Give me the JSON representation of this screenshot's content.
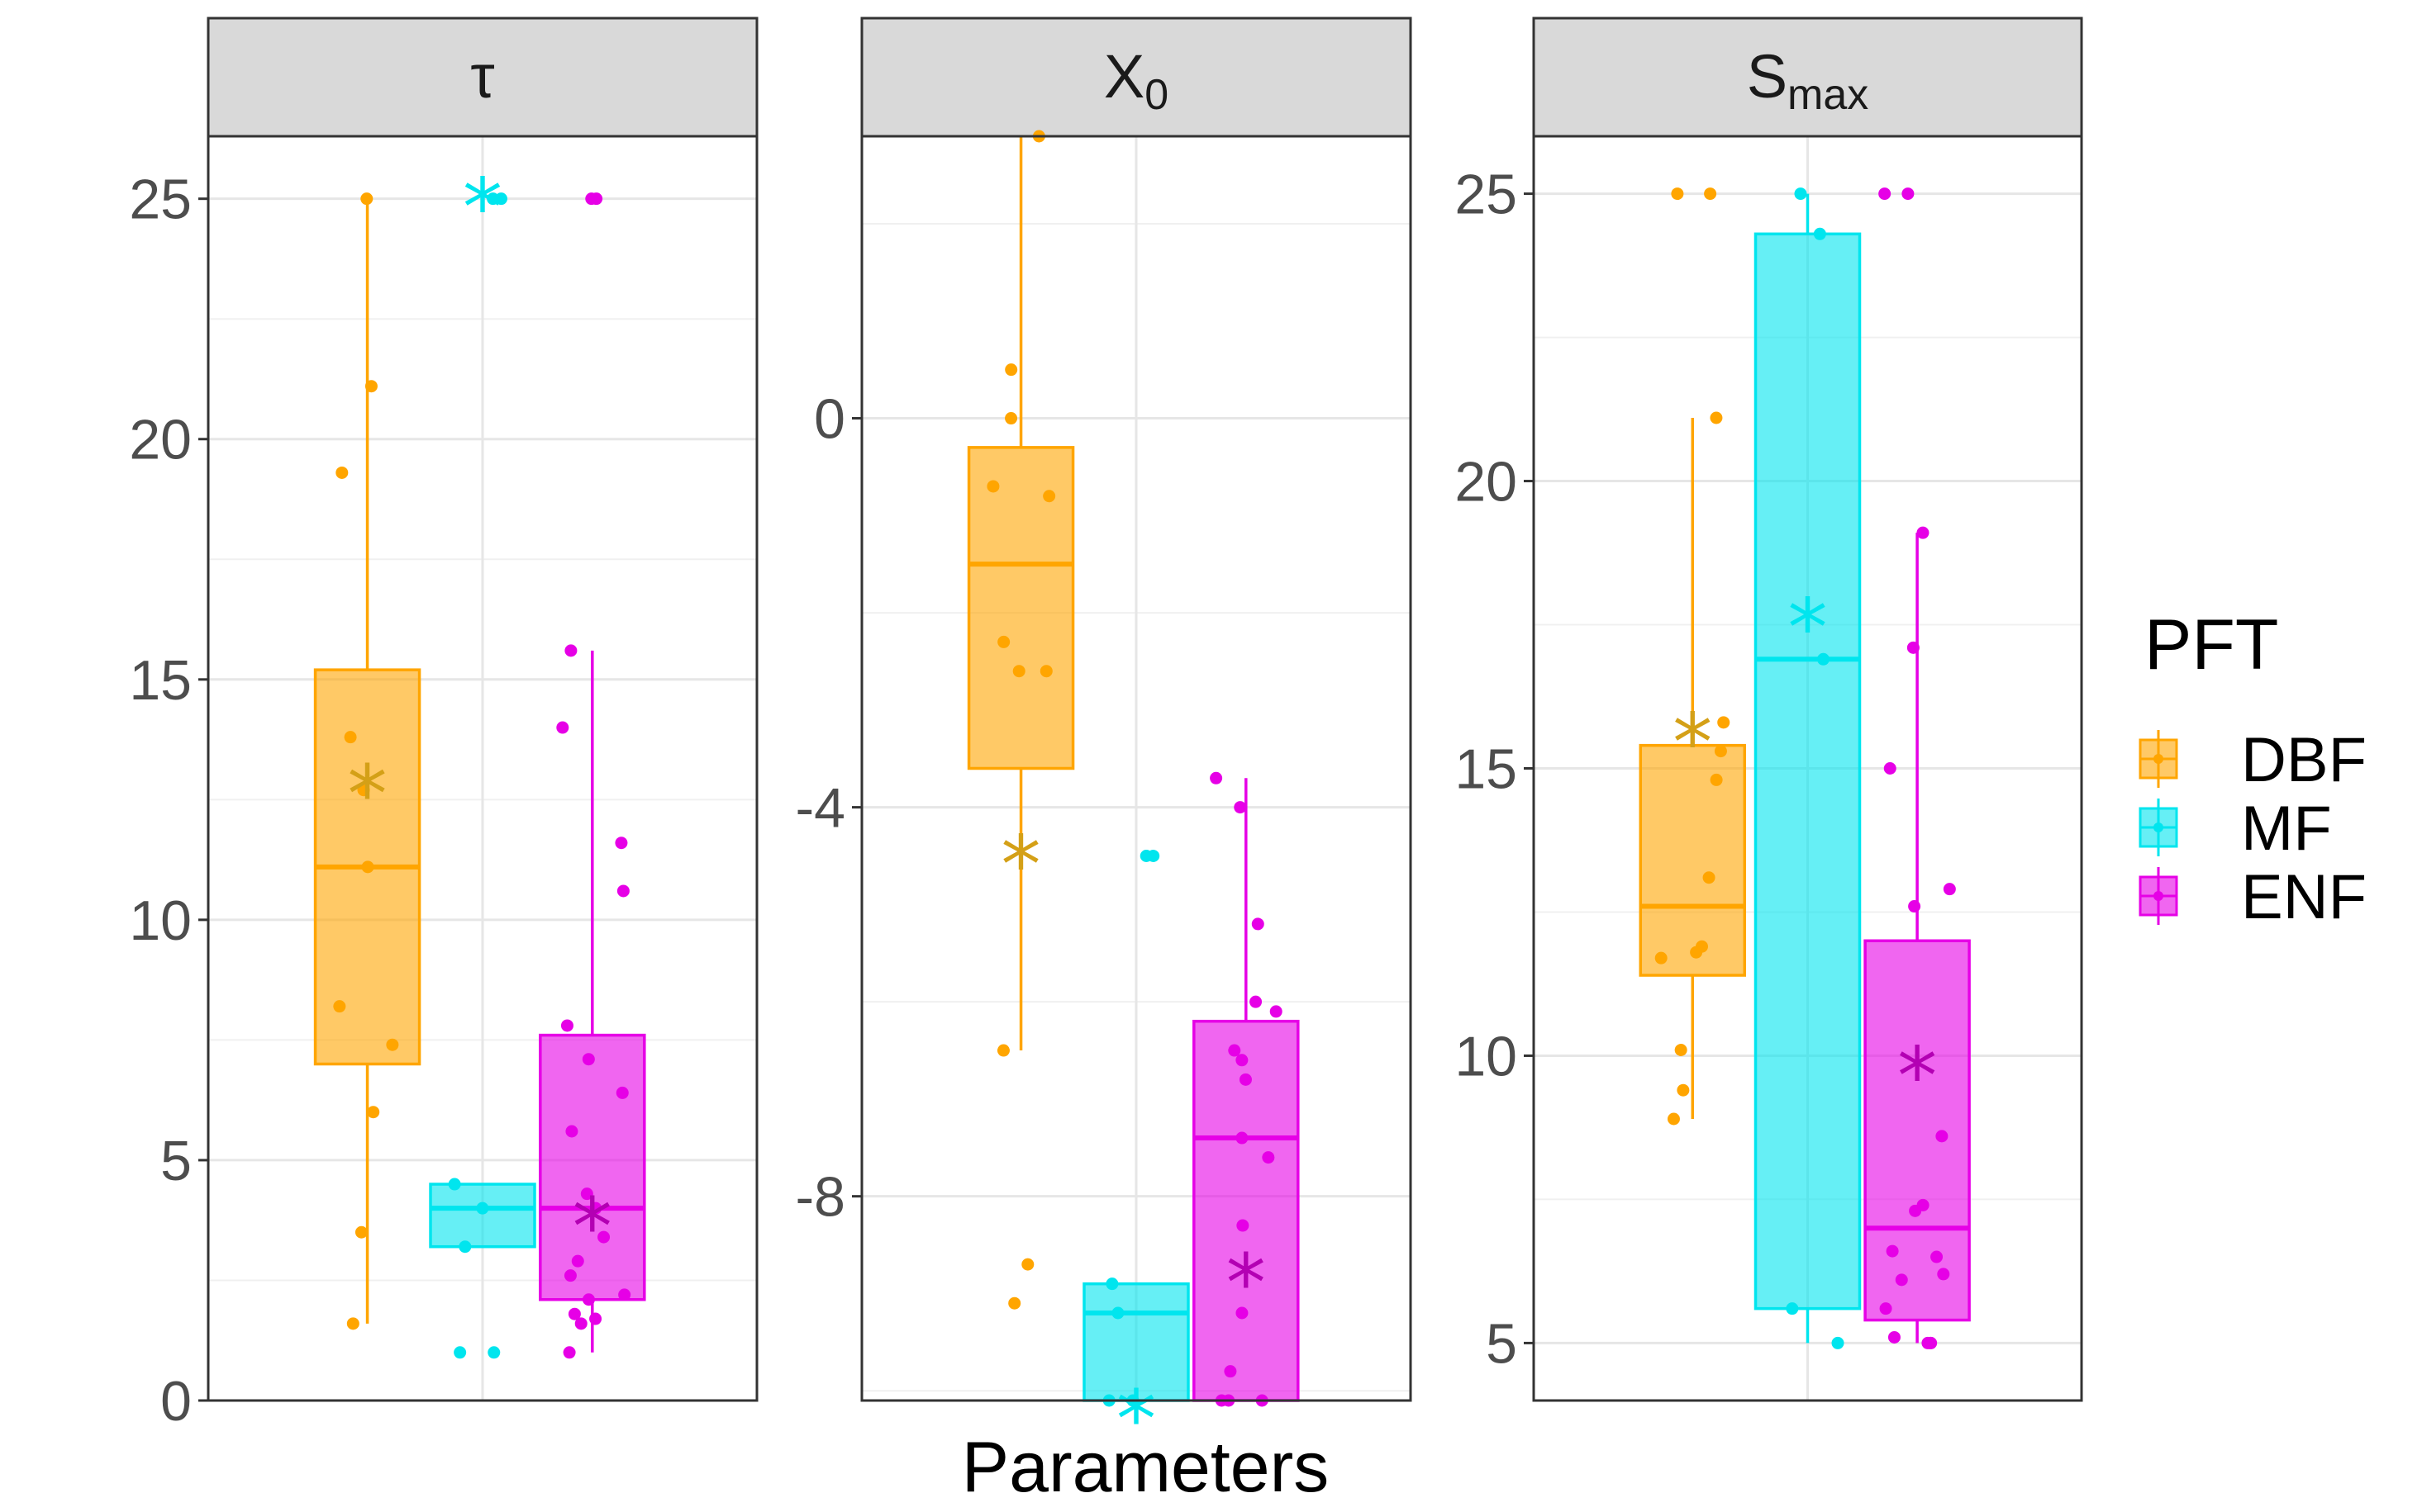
{
  "chart_data": {
    "type": "box",
    "xlabel": "Parameters",
    "legend": {
      "title": "PFT",
      "position": "right",
      "entries": [
        {
          "name": "DBF",
          "color": "#FFA500"
        },
        {
          "name": "MF",
          "color": "#00E5EE"
        },
        {
          "name": "ENF",
          "color": "#E600E6"
        }
      ]
    },
    "mean_marker_colors": [
      "#D4A017",
      "#00E5EE",
      "#B300B3"
    ],
    "grid": true,
    "panels": [
      {
        "label": "τ",
        "sub": "",
        "ylim": [
          0,
          26.3
        ],
        "yticks": [
          "0",
          "5",
          "10",
          "15",
          "20",
          "25"
        ],
        "ytick_values": [
          0,
          5,
          10,
          15,
          20,
          25
        ],
        "groups": [
          {
            "name": "DBF",
            "stats": {
              "whisker_low": 1.6,
              "q1": 7.0,
              "median": 11.1,
              "q3": 15.2,
              "whisker_high": 25.0
            },
            "mean": 12.8,
            "points": [
              25.0,
              21.1,
              19.3,
              13.8,
              12.7,
              11.1,
              8.2,
              7.4,
              6.0,
              3.5,
              1.6
            ]
          },
          {
            "name": "MF",
            "stats": {
              "whisker_low": 3.2,
              "q1": 3.2,
              "median": 4.0,
              "q3": 4.5,
              "whisker_high": 4.5
            },
            "mean": 25.0,
            "points": [
              25.0,
              25.0,
              4.5,
              4.0,
              3.2,
              1.0,
              1.0
            ]
          },
          {
            "name": "ENF",
            "stats": {
              "whisker_low": 1.0,
              "q1": 2.1,
              "median": 4.0,
              "q3": 7.6,
              "whisker_high": 15.6
            },
            "mean": 3.8,
            "points": [
              25.0,
              25.0,
              15.6,
              14.0,
              11.6,
              10.6,
              7.8,
              7.1,
              6.4,
              5.6,
              4.3,
              4.0,
              3.4,
              2.9,
              2.6,
              2.2,
              2.1,
              1.8,
              1.7,
              1.6,
              1.0
            ]
          }
        ]
      },
      {
        "label": "X",
        "sub": "0",
        "ylim": [
          -10.1,
          2.9
        ],
        "yticks": [
          "-8",
          "-4",
          "0"
        ],
        "ytick_values": [
          -8,
          -4,
          0
        ],
        "groups": [
          {
            "name": "DBF",
            "stats": {
              "whisker_low": -6.5,
              "q1": -3.6,
              "median": -1.5,
              "q3": -0.3,
              "whisker_high": 2.9
            },
            "mean": -4.5,
            "points": [
              2.9,
              0.5,
              0.0,
              -0.7,
              -0.8,
              -2.3,
              -2.6,
              -2.6,
              -6.5,
              -8.7,
              -9.1
            ]
          },
          {
            "name": "MF",
            "stats": {
              "whisker_low": -10.1,
              "q1": -10.1,
              "median": -9.2,
              "q3": -8.9,
              "whisker_high": -8.9
            },
            "mean": -10.2,
            "points": [
              -4.5,
              -4.5,
              -8.9,
              -9.2,
              -10.1,
              -10.1
            ]
          },
          {
            "name": "ENF",
            "stats": {
              "whisker_low": -10.1,
              "q1": -10.1,
              "median": -7.4,
              "q3": -6.2,
              "whisker_high": -3.7
            },
            "mean": -8.8,
            "points": [
              -3.7,
              -4.0,
              -5.2,
              -6.0,
              -6.1,
              -6.5,
              -6.6,
              -6.8,
              -7.4,
              -7.6,
              -8.3,
              -9.2,
              -9.8,
              -10.1,
              -10.1,
              -10.1
            ]
          }
        ]
      },
      {
        "label": "S",
        "sub": "max",
        "ylim": [
          4.0,
          26.0
        ],
        "yticks": [
          "5",
          "10",
          "15",
          "20",
          "25"
        ],
        "ytick_values": [
          5,
          10,
          15,
          20,
          25
        ],
        "groups": [
          {
            "name": "DBF",
            "stats": {
              "whisker_low": 8.9,
              "q1": 11.4,
              "median": 12.6,
              "q3": 15.4,
              "whisker_high": 21.1
            },
            "mean": 15.6,
            "points": [
              25.0,
              25.0,
              21.1,
              15.8,
              15.3,
              14.8,
              13.1,
              11.9,
              11.8,
              11.7,
              10.1,
              9.4,
              8.9
            ]
          },
          {
            "name": "MF",
            "stats": {
              "whisker_low": 5.0,
              "q1": 5.6,
              "median": 16.9,
              "q3": 24.3,
              "whisker_high": 25.0
            },
            "mean": 17.6,
            "points": [
              25.0,
              24.3,
              16.9,
              5.6,
              5.0
            ]
          },
          {
            "name": "ENF",
            "stats": {
              "whisker_low": 5.0,
              "q1": 5.4,
              "median": 7.0,
              "q3": 12.0,
              "whisker_high": 19.1
            },
            "mean": 9.8,
            "points": [
              25.0,
              25.0,
              19.1,
              17.1,
              15.0,
              12.9,
              12.6,
              8.6,
              7.4,
              7.3,
              6.6,
              6.5,
              6.2,
              6.1,
              5.6,
              5.1,
              5.0,
              5.0,
              5.0
            ]
          }
        ]
      }
    ]
  }
}
